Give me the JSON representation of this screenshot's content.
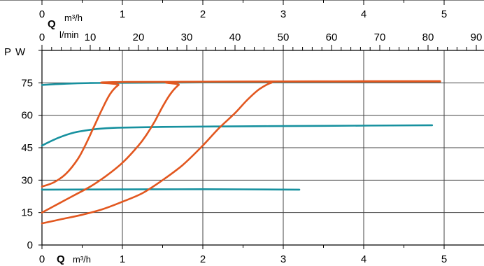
{
  "chart_data": {
    "type": "line",
    "y_axis": {
      "label_symbol": "P",
      "label_unit": "W",
      "ticks": [
        "0",
        "15",
        "30",
        "45",
        "60",
        "75"
      ],
      "ylim": [
        0,
        90
      ],
      "grid": true
    },
    "x_axis_m3h": {
      "symbol": "Q",
      "unit": "m³/h",
      "ticks": [
        "0",
        "1",
        "2",
        "3",
        "4",
        "5"
      ],
      "xlim": [
        0,
        5.5
      ],
      "grid": true
    },
    "x_axis_lmin": {
      "unit": "l/min",
      "ticks": [
        "0",
        "10",
        "20",
        "30",
        "40",
        "50",
        "60",
        "70",
        "80",
        "90"
      ],
      "xlim": [
        0,
        91.67
      ]
    },
    "top_cut_axis": {
      "symbol": "Q",
      "unit": "m³/h",
      "ticks": [
        "0",
        "1",
        "2",
        "3",
        "4",
        "5"
      ]
    },
    "colors": {
      "teal": "#17919f",
      "orange": "#e2571f",
      "grid": "#444444"
    },
    "series": [
      {
        "color": "teal",
        "points": [
          [
            0,
            74
          ],
          [
            0.3,
            74.6
          ],
          [
            0.6,
            74.9
          ],
          [
            1,
            75
          ],
          [
            2,
            75.2
          ],
          [
            3,
            75.3
          ],
          [
            4,
            75.4
          ],
          [
            4.95,
            75.5
          ]
        ]
      },
      {
        "color": "teal",
        "points": [
          [
            0,
            46
          ],
          [
            0.2,
            49.5
          ],
          [
            0.4,
            52
          ],
          [
            0.6,
            53.3
          ],
          [
            0.8,
            54
          ],
          [
            1.0,
            54.3
          ],
          [
            1.5,
            54.6
          ],
          [
            2.5,
            54.9
          ],
          [
            3.5,
            55.1
          ],
          [
            4.85,
            55.4
          ]
        ]
      },
      {
        "color": "teal",
        "points": [
          [
            0,
            25.6
          ],
          [
            1,
            25.7
          ],
          [
            2,
            25.8
          ],
          [
            3.2,
            25.6
          ]
        ]
      },
      {
        "color": "orange",
        "points": [
          [
            0,
            27
          ],
          [
            0.15,
            29
          ],
          [
            0.3,
            33
          ],
          [
            0.45,
            40
          ],
          [
            0.55,
            47
          ],
          [
            0.65,
            55
          ],
          [
            0.75,
            63
          ],
          [
            0.85,
            70
          ],
          [
            0.95,
            74
          ],
          [
            1.05,
            75.4
          ],
          [
            4.95,
            75.6
          ]
        ]
      },
      {
        "color": "orange",
        "points": [
          [
            0,
            15
          ],
          [
            0.2,
            19
          ],
          [
            0.4,
            23
          ],
          [
            0.6,
            27
          ],
          [
            0.8,
            32
          ],
          [
            1.0,
            38
          ],
          [
            1.2,
            46
          ],
          [
            1.3,
            51
          ],
          [
            1.4,
            57
          ],
          [
            1.5,
            64
          ],
          [
            1.6,
            70
          ],
          [
            1.7,
            74
          ],
          [
            1.8,
            75.5
          ],
          [
            4.95,
            75.7
          ]
        ]
      },
      {
        "color": "orange",
        "points": [
          [
            0,
            10
          ],
          [
            0.25,
            12
          ],
          [
            0.5,
            14
          ],
          [
            0.75,
            16.5
          ],
          [
            1.0,
            20
          ],
          [
            1.25,
            24
          ],
          [
            1.5,
            30
          ],
          [
            1.75,
            37
          ],
          [
            2.0,
            46
          ],
          [
            2.2,
            54
          ],
          [
            2.4,
            61
          ],
          [
            2.55,
            67
          ],
          [
            2.7,
            72
          ],
          [
            2.85,
            75
          ],
          [
            3.0,
            75.6
          ],
          [
            4.95,
            75.8
          ]
        ]
      }
    ]
  }
}
